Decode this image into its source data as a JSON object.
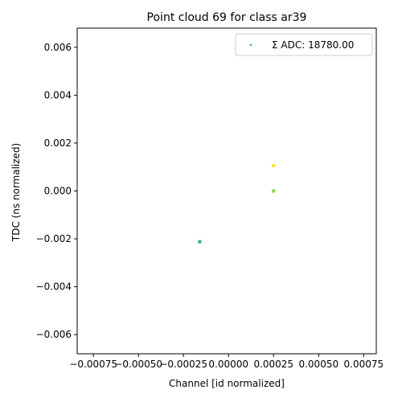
{
  "chart_data": {
    "type": "scatter",
    "title": "Point cloud 69 for class ar39",
    "xlabel": "Channel [id normalized]",
    "ylabel": "TDC (ns normalized)",
    "xlim": [
      -0.00084,
      0.00082
    ],
    "ylim": [
      -0.0068,
      0.0068
    ],
    "xticks": [
      -0.00075,
      -0.0005,
      -0.00025,
      0.0,
      0.00025,
      0.0005,
      0.00075
    ],
    "xtick_labels": [
      "−0.00075",
      "−0.00050",
      "−0.00025",
      "0.00000",
      "0.00025",
      "0.00050",
      "0.00075"
    ],
    "yticks": [
      -0.006,
      -0.004,
      -0.002,
      0.0,
      0.002,
      0.004,
      0.006
    ],
    "ytick_labels": [
      "−0.006",
      "−0.004",
      "−0.002",
      "0.000",
      "0.002",
      "0.004",
      "0.006"
    ],
    "grid": false,
    "legend_position": "top-right",
    "series": [
      {
        "name": "Σ ADC: 18780.00",
        "legend_color": "#35b779",
        "points": [
          {
            "x": -0.00016,
            "y": -0.00212,
            "color": "#35b779"
          },
          {
            "x": 0.00025,
            "y": 0.0,
            "color": "#8fd744"
          },
          {
            "x": 0.00025,
            "y": 0.00106,
            "color": "#fde725"
          }
        ]
      }
    ]
  }
}
